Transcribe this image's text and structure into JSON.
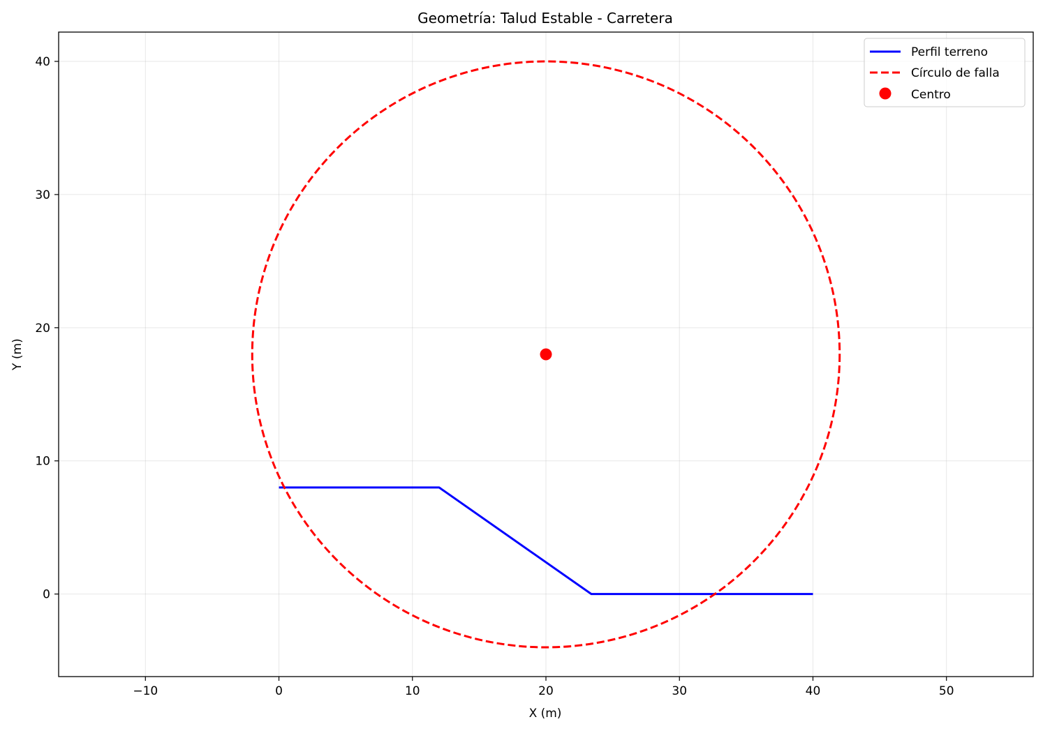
{
  "chart_data": {
    "type": "line",
    "title": "Geometría: Talud Estable - Carretera",
    "xlabel": "X (m)",
    "ylabel": "Y (m)",
    "xlim": [
      -16.5,
      56.5
    ],
    "ylim": [
      -6.2,
      42.2
    ],
    "xticks": [
      -10,
      0,
      10,
      20,
      30,
      40,
      50
    ],
    "yticks": [
      0,
      10,
      20,
      30,
      40
    ],
    "xtick_labels": [
      "−10",
      "0",
      "10",
      "20",
      "30",
      "40",
      "50"
    ],
    "ytick_labels": [
      "0",
      "10",
      "20",
      "30",
      "40"
    ],
    "grid": true,
    "legend_position": "top-right",
    "series": [
      {
        "name": "Perfil terreno",
        "kind": "line",
        "color": "#0000ff",
        "points": [
          [
            0,
            8
          ],
          [
            12,
            8
          ],
          [
            23.4,
            0
          ],
          [
            40,
            0
          ]
        ]
      },
      {
        "name": "Círculo de falla",
        "kind": "circle-dashed",
        "color": "#ff0000",
        "center": [
          20,
          18
        ],
        "radius": 22
      },
      {
        "name": "Centro",
        "kind": "point",
        "color": "#ff0000",
        "points": [
          [
            20,
            18
          ]
        ]
      }
    ]
  }
}
